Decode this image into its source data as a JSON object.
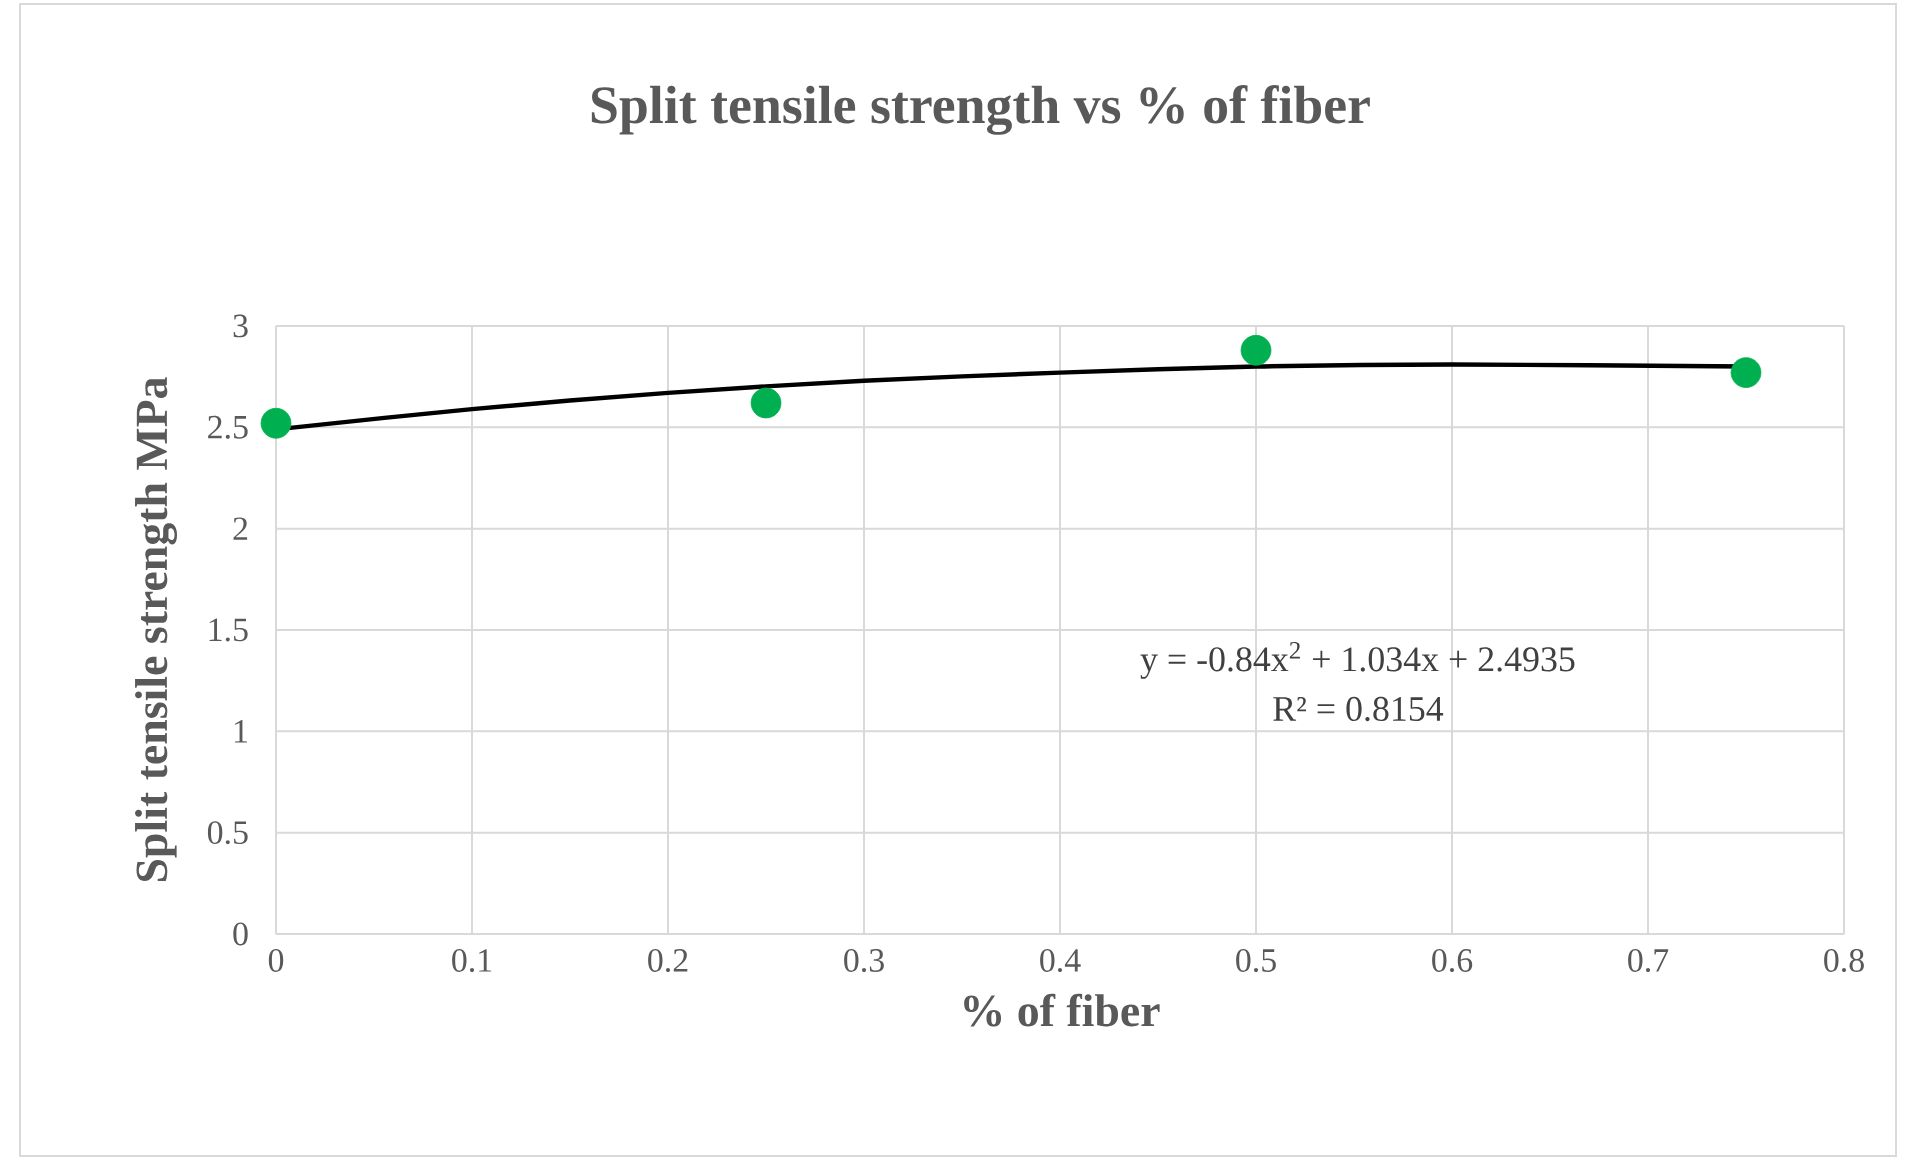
{
  "chart_data": {
    "type": "scatter",
    "title": "Split tensile strength vs % of fiber",
    "xlabel": "% of fiber",
    "ylabel": "Split tensile strength MPa",
    "series": [
      {
        "color": "#00b050",
        "x": [
          0,
          0.25,
          0.5,
          0.75
        ],
        "values": [
          2.52,
          2.62,
          2.88,
          2.77
        ],
        "marker": "circle"
      },
      {
        "type": "line",
        "color": "#000000",
        "x": [
          0,
          0.1,
          0.2,
          0.3,
          0.4,
          0.5,
          0.6,
          0.75
        ],
        "values": [
          2.49,
          2.59,
          2.67,
          2.73,
          2.77,
          2.8,
          2.81,
          2.8
        ],
        "marker": "none",
        "line_style": "solid"
      }
    ],
    "xlim": [
      0,
      0.8
    ],
    "xticks": [
      0,
      0.1,
      0.2,
      0.3,
      0.4,
      0.5,
      0.6,
      0.7,
      0.8
    ],
    "ylim": [
      0,
      3
    ],
    "yticks": [
      0,
      0.5,
      1,
      1.5,
      2,
      2.5,
      3
    ],
    "grid": true,
    "annotations": [
      "y = -0.84x$^{2}$ + 1.034x + 2.4935",
      "R² = 0.8154"
    ]
  }
}
